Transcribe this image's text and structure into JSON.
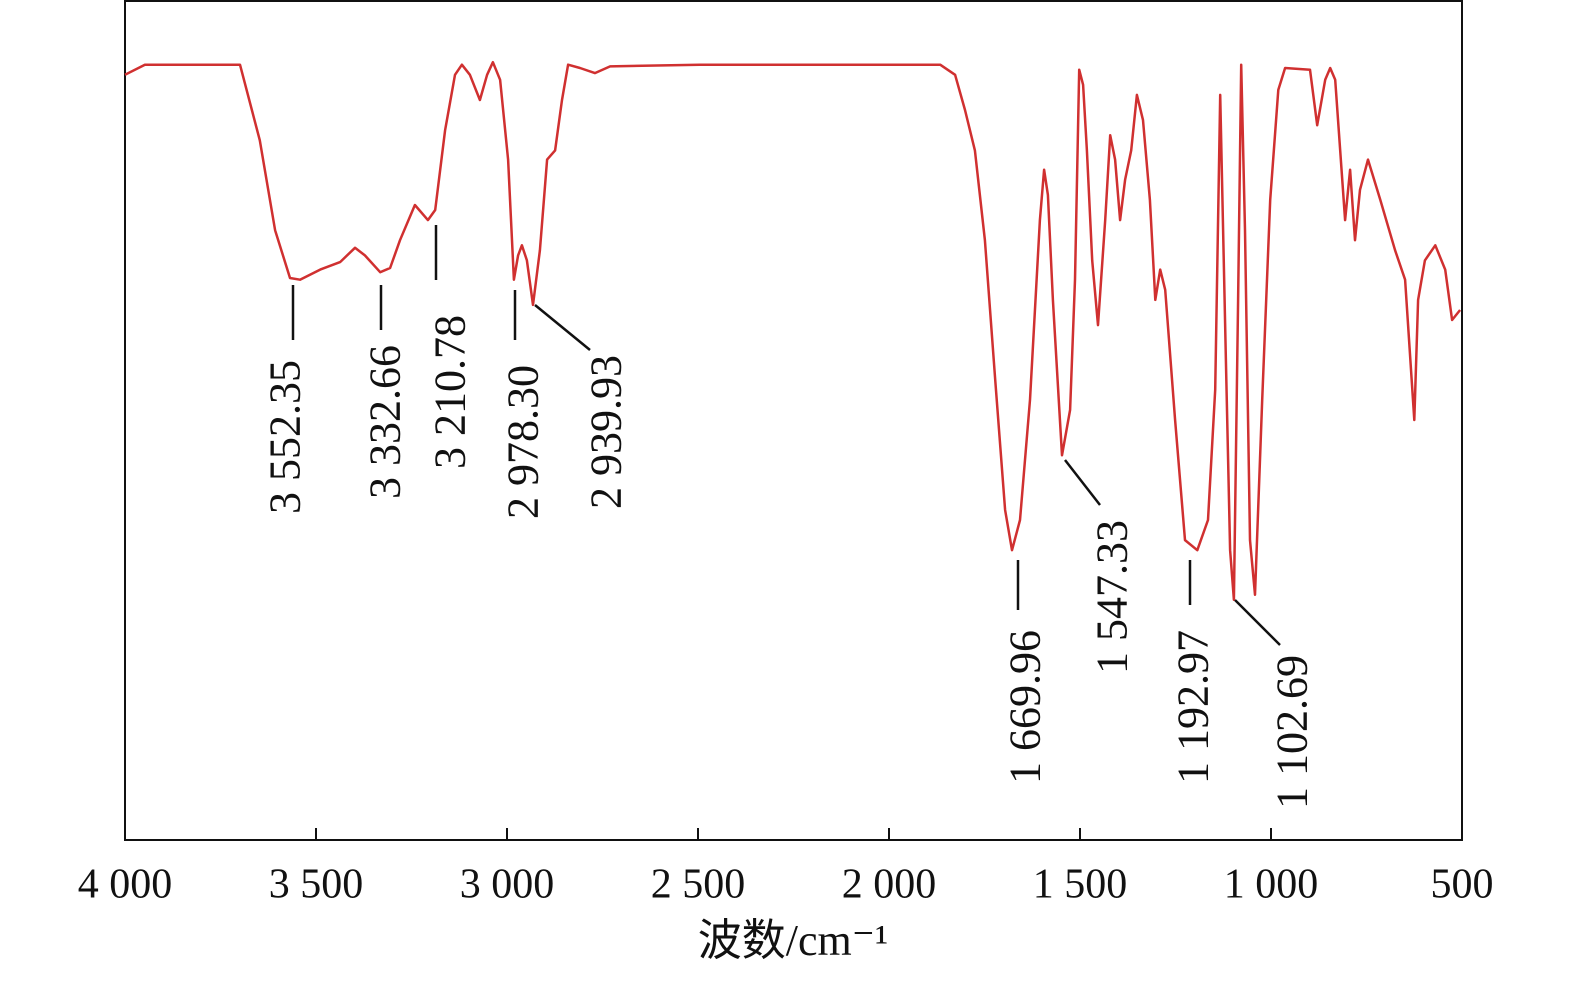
{
  "chart_data": {
    "type": "line",
    "x_label": "波数/cm⁻¹",
    "xlim": [
      4000,
      500
    ],
    "ylim": [
      0,
      100
    ],
    "xticks": [
      {
        "value": 4000,
        "label": "4 000"
      },
      {
        "value": 3500,
        "label": "3 500"
      },
      {
        "value": 3000,
        "label": "3 000"
      },
      {
        "value": 2500,
        "label": "2 500"
      },
      {
        "value": 2000,
        "label": "2 000"
      },
      {
        "value": 1500,
        "label": "1 500"
      },
      {
        "value": 1000,
        "label": "1 000"
      },
      500
    ],
    "series": [
      {
        "color": "#d03030",
        "x": [
          4000,
          3948,
          3699,
          3647,
          3607,
          3568,
          3542,
          3489,
          3437,
          3398,
          3372,
          3332,
          3306,
          3280,
          3241,
          3207,
          3188,
          3162,
          3136,
          3118,
          3097,
          3071,
          3052,
          3037,
          3018,
          2997,
          2982,
          2971,
          2961,
          2948,
          2932,
          2914,
          2895,
          2874,
          2856,
          2840,
          2809,
          2770,
          2730,
          2495,
          1866,
          1827,
          1801,
          1775,
          1749,
          1722,
          1696,
          1678,
          1657,
          1631,
          1605,
          1594,
          1584,
          1571,
          1547,
          1526,
          1513,
          1502,
          1492,
          1482,
          1468,
          1453,
          1434,
          1421,
          1408,
          1395,
          1382,
          1366,
          1351,
          1335,
          1317,
          1303,
          1290,
          1277,
          1251,
          1225,
          1193,
          1165,
          1146,
          1133,
          1118,
          1107,
          1097,
          1086,
          1078,
          1068,
          1055,
          1042,
          1023,
          1002,
          981,
          963,
          898,
          879,
          858,
          845,
          832,
          806,
          793,
          780,
          767,
          746,
          714,
          675,
          649,
          625,
          615,
          597,
          570,
          544,
          526,
          505
        ],
        "values": [
          91.1,
          92.3,
          92.3,
          83.3,
          72.6,
          66.9,
          66.7,
          67.9,
          68.8,
          70.5,
          69.6,
          67.6,
          68.1,
          71.4,
          75.6,
          73.8,
          75.0,
          84.5,
          91.1,
          92.3,
          91.1,
          88.1,
          91.1,
          92.6,
          90.5,
          81.0,
          66.7,
          69.6,
          70.8,
          69.0,
          63.7,
          70.2,
          81.0,
          82.1,
          88.1,
          92.3,
          91.9,
          91.3,
          92.1,
          92.3,
          92.3,
          91.1,
          86.9,
          82.1,
          71.4,
          54.8,
          39.3,
          34.5,
          38.1,
          52.4,
          73.8,
          79.8,
          76.8,
          64.3,
          45.8,
          51.2,
          66.7,
          91.7,
          89.9,
          82.1,
          69.0,
          61.3,
          73.8,
          83.9,
          81.0,
          73.8,
          78.6,
          82.1,
          88.7,
          85.7,
          76.2,
          64.3,
          67.9,
          65.5,
          50.0,
          35.7,
          34.5,
          38.1,
          53.6,
          88.7,
          57.1,
          34.5,
          28.6,
          64.3,
          92.3,
          72.6,
          35.7,
          29.2,
          52.4,
          76.2,
          89.3,
          91.9,
          91.7,
          85.1,
          90.5,
          91.9,
          90.5,
          73.8,
          79.8,
          71.4,
          77.4,
          81.0,
          76.2,
          70.2,
          66.7,
          50.0,
          64.3,
          69.0,
          70.8,
          67.9,
          61.9,
          63.1
        ]
      }
    ],
    "annotations": [
      {
        "text": "3 552.35",
        "x": 3552.35
      },
      {
        "text": "3 332.66",
        "x": 3332.66
      },
      {
        "text": "3 210.78",
        "x": 3210.78
      },
      {
        "text": "2 978.30",
        "x": 2978.3
      },
      {
        "text": "2 939.93",
        "x": 2939.93
      },
      {
        "text": "1 669.96",
        "x": 1669.96
      },
      {
        "text": "1 547.33",
        "x": 1547.33
      },
      {
        "text": "1 192.97",
        "x": 1192.97
      },
      {
        "text": "1 102.69",
        "x": 1102.69
      }
    ]
  }
}
